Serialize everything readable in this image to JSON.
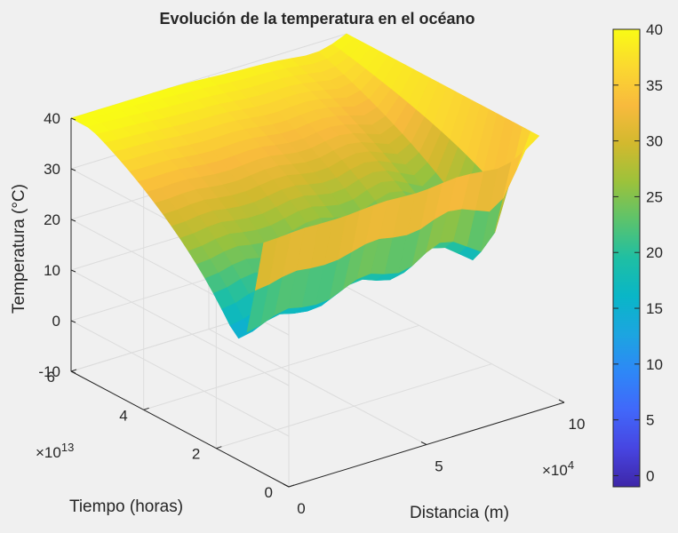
{
  "chart_data": {
    "type": "surface",
    "title": "Evolución de la temperatura en el océano",
    "xlabel": "Distancia (m)",
    "ylabel": "Tiempo (horas)",
    "zlabel": "Temperatura (°C)",
    "x_multiplier": "×10",
    "x_multiplier_exp": "4",
    "y_multiplier": "×10",
    "y_multiplier_exp": "13",
    "xlim": [
      0,
      100000
    ],
    "ylim": [
      0,
      60000000000000
    ],
    "zlim": [
      -10,
      40
    ],
    "x_ticks": [
      "0",
      "5",
      "10"
    ],
    "y_ticks": [
      "0",
      "2",
      "4",
      "6"
    ],
    "z_ticks": [
      "-10",
      "0",
      "10",
      "20",
      "30",
      "40"
    ],
    "colorbar_ticks": [
      "0",
      "5",
      "10",
      "15",
      "20",
      "25",
      "30",
      "35",
      "40"
    ],
    "colorbar_range": [
      -1,
      40
    ],
    "colormap": [
      "#3e26a8",
      "#4745e1",
      "#4167fa",
      "#2e87f7",
      "#1ca5e0",
      "#09b6c7",
      "#1fbfa3",
      "#5cc36c",
      "#9cc23b",
      "#d2b92e",
      "#f8ba3d",
      "#fbd830",
      "#f9fb15"
    ],
    "grid": true,
    "surface": {
      "x_values": [
        0,
        5000,
        10000,
        15000,
        20000,
        25000,
        30000,
        35000,
        40000,
        45000,
        50000,
        55000,
        60000,
        65000,
        70000,
        75000,
        80000,
        85000,
        90000,
        95000,
        100000
      ],
      "t0_profile": [
        -1,
        0,
        2,
        3,
        2,
        1.5,
        2,
        4,
        6,
        6.5,
        5,
        4,
        5,
        8,
        10,
        9,
        6,
        3,
        8,
        22,
        40
      ],
      "initial_front_y": 10000000000000,
      "final_front_y": 55000000000000,
      "boundary_temperature": 40
    }
  }
}
